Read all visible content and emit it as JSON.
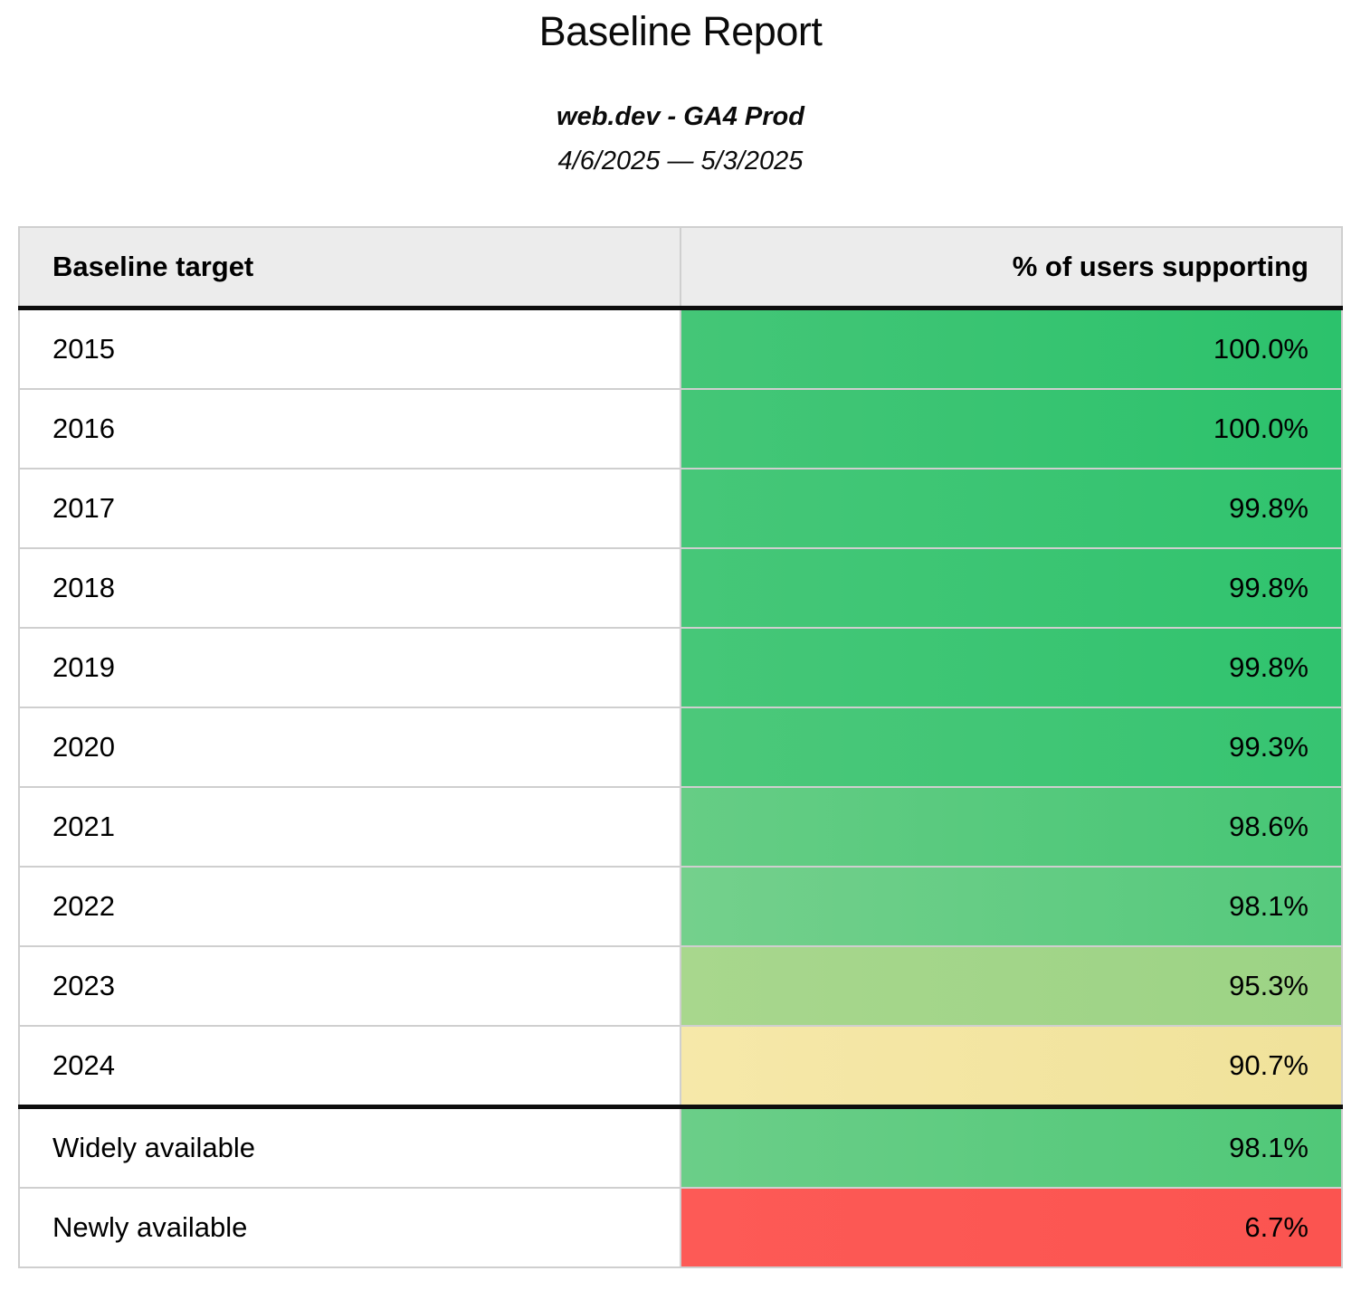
{
  "page": {
    "title": "Baseline Report",
    "subtitle": "web.dev - GA4 Prod",
    "date_range": "4/6/2025 — 5/3/2025"
  },
  "table": {
    "columns": [
      {
        "label": "Baseline target",
        "align": "left"
      },
      {
        "label": "% of users supporting",
        "align": "right"
      }
    ],
    "rows": [
      {
        "target": "2015",
        "value": "100.0%",
        "color_left": "#44c677",
        "color_right": "#2cc26c",
        "section_start": false
      },
      {
        "target": "2016",
        "value": "100.0%",
        "color_left": "#44c677",
        "color_right": "#2cc26c",
        "section_start": false
      },
      {
        "target": "2017",
        "value": "99.8%",
        "color_left": "#46c778",
        "color_right": "#30c36e",
        "section_start": false
      },
      {
        "target": "2018",
        "value": "99.8%",
        "color_left": "#46c778",
        "color_right": "#30c36e",
        "section_start": false
      },
      {
        "target": "2019",
        "value": "99.8%",
        "color_left": "#46c778",
        "color_right": "#30c36e",
        "section_start": false
      },
      {
        "target": "2020",
        "value": "99.3%",
        "color_left": "#4cc87a",
        "color_right": "#36c471",
        "section_start": false
      },
      {
        "target": "2021",
        "value": "98.6%",
        "color_left": "#66cd85",
        "color_right": "#46c675",
        "section_start": false
      },
      {
        "target": "2022",
        "value": "98.1%",
        "color_left": "#74d08c",
        "color_right": "#54c97c",
        "section_start": false
      },
      {
        "target": "2023",
        "value": "95.3%",
        "color_left": "#a8d78d",
        "color_right": "#9cd385",
        "section_start": false
      },
      {
        "target": "2024",
        "value": "90.7%",
        "color_left": "#f6e8a9",
        "color_right": "#f0e29a",
        "section_start": false
      },
      {
        "target": "Widely available",
        "value": "98.1%",
        "color_left": "#6bce88",
        "color_right": "#50c878",
        "section_start": true
      },
      {
        "target": "Newly available",
        "value": "6.7%",
        "color_left": "#fd5a56",
        "color_right": "#fb5450",
        "section_start": false
      }
    ]
  },
  "colors": {
    "header_background": "#ececec",
    "grid_line": "#cfcfcf",
    "section_divider": "#0d0d0d",
    "text": "#000000",
    "page_background": "#ffffff",
    "status_red": "#fd5a56",
    "status_green_full": "#2cc26c",
    "status_yellow": "#f0e29a"
  }
}
